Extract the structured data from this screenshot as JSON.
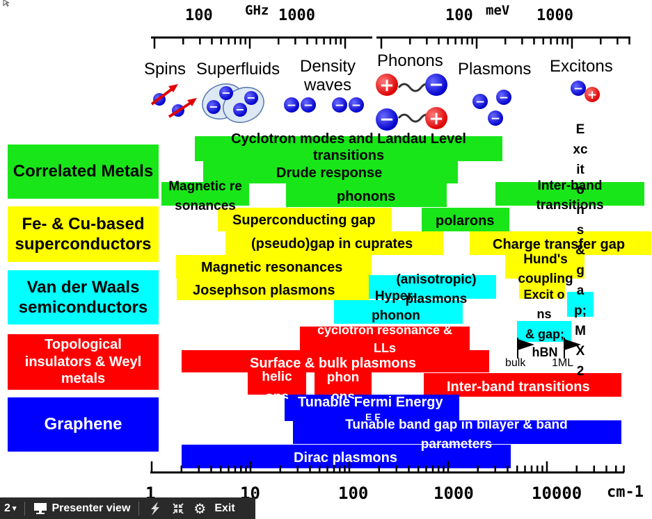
{
  "top_axis": {
    "ghz_unit": "GHz",
    "ghz_ticks": [
      "100",
      "1000"
    ],
    "mev_unit": "meV",
    "mev_ticks": [
      "100",
      "1000"
    ]
  },
  "excitations": {
    "spins": "Spins",
    "superfluids": "Superfluids",
    "density_waves": "Density waves",
    "phonons": "Phonons",
    "plasmons": "Plasmons",
    "excitons": "Excitons"
  },
  "categories": {
    "correlated_metals": "Correlated Metals",
    "fe_cu_superconductors": "Fe- & Cu-based superconductors",
    "vdw_semiconductors": "Van der Waals semiconductors",
    "topological": "Topological insulators & Weyl metals",
    "graphene": "Graphene"
  },
  "category_colors": {
    "correlated_metals": "#19e619",
    "fe_cu_superconductors": "#ffff00",
    "vdw_semiconductors": "#00ffff",
    "topological": "#ff0000",
    "graphene": "#0000ff"
  },
  "bars": {
    "cyclotron_landau": "Cyclotron modes and Landau Level transitions",
    "drude": "Drude response",
    "magnetic_resonances_metals": "Magnetic resonances",
    "phonons": "phonons",
    "interband_metals": "Inter-band transitions",
    "superconducting_gap": "Superconducting gap",
    "polarons": "polarons",
    "pseudogap": "(pseudo)gap in cuprates",
    "charge_transfer_gap": "Charge transfer gap",
    "magnetic_resonances_sc": "Magnetic resonances",
    "hunds_coupling": "Hund's coupling",
    "josephson_plasmons": "Josephson plasmons",
    "anisotropic_plasmons": "(anisotropic) plasmons",
    "hyper_phonon": "Hyper-phonon",
    "excitons_vdw": "Excit ons",
    "gap_hbn": "& gap; hBN",
    "bulk": "bulk",
    "one_ml": "1ML",
    "cyclotron_lls": "cyclotron resonance & LLs",
    "surface_bulk_plasmons": "Surface & bulk plasmons",
    "helicons": "helic ons",
    "phonons_topo": "phon ons",
    "interband_topo": "Inter-band transitions",
    "tunable_fermi": "Tunable Fermi Energy",
    "tunable_fermi_ef": "E F",
    "tunable_bandgap": "Tunable band gap in bilayer & band parameters",
    "dirac_plasmons": "Dirac plasmons",
    "excitons_vertical": "Excitons & gap; MX2"
  },
  "bottom_axis": {
    "ticks": [
      "1",
      "10",
      "100",
      "1000",
      "10000"
    ],
    "unit": "cm-1",
    "log_range": [
      1,
      50000
    ]
  },
  "toolbar": {
    "slide_indicator": "2",
    "presenter_view": "Presenter view",
    "exit": "Exit"
  }
}
